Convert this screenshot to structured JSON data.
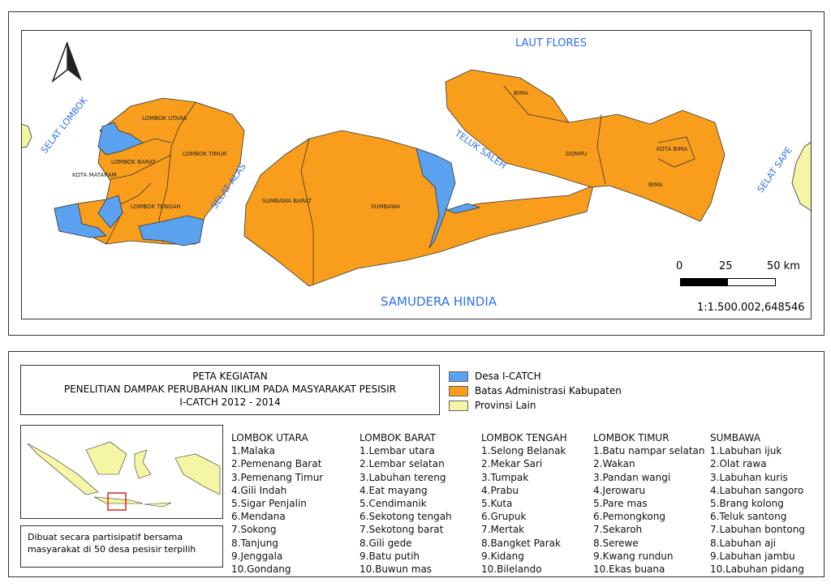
{
  "map": {
    "labels": {
      "laut_flores": "LAUT FLORES",
      "selat_lombok": "SELAT LOMBOK",
      "selat_alas": "SELAT ALAS",
      "teluk_saleh": "TELUK SALEH",
      "selat_sape": "SELAT SAPE",
      "samudera_hindia": "SAMUDERA HINDIA"
    },
    "regions": {
      "lombok_utara": "LOMBOK UTARA",
      "lombok_barat": "LOMBOK BARAT",
      "kota_mataram": "KOTA MATARAM",
      "lombok_tengah": "LOMBOK TENGAH",
      "lombok_timur": "LOMBOK TIMUR",
      "sumbawa_barat": "SUMBAWA BARAT",
      "sumbawa": "SUMBAWA",
      "dompu": "DOMPU",
      "bima_north": "BIMA",
      "bima": "BIMA",
      "kota_bima": "KOTA BIMA"
    },
    "scale": {
      "t0": "0",
      "t1": "25",
      "t2": "50 km",
      "ratio": "1:1.500.002,648546"
    },
    "north_arrow": "north-arrow-icon",
    "colors": {
      "desa": "#5aa2f0",
      "kabupaten": "#f99e1c",
      "provinsi_lain": "#f5f5a6",
      "label": "#2f6fef"
    }
  },
  "legend": {
    "title": [
      "PETA KEGIATAN",
      "PENELITIAN DAMPAK PERUBAHAN IIKLIM PADA MASYARAKAT PESISIR",
      "I-CATCH 2012 - 2014"
    ],
    "items": [
      {
        "label": "Desa I-CATCH",
        "color": "#5aa2f0"
      },
      {
        "label": "Batas Administrasi Kabupaten",
        "color": "#f99e1c"
      },
      {
        "label": "Provinsi Lain",
        "color": "#f5f5a6"
      }
    ],
    "note": [
      "Dibuat secara partisipatif bersama",
      "masyarakat di 50 desa pesisir terpilih"
    ]
  },
  "lists": [
    {
      "header": "LOMBOK UTARA",
      "items": [
        "1.Malaka",
        "2.Pemenang Barat",
        "3.Pemenang Timur",
        "4.Gili Indah",
        "5.Sigar Penjalin",
        "6.Mendana",
        "7.Sokong",
        "8.Tanjung",
        "9.Jenggala",
        "10.Gondang"
      ]
    },
    {
      "header": "LOMBOK BARAT",
      "items": [
        "1.Lembar utara",
        "2.Lembar selatan",
        "3.Labuhan tereng",
        "4.Eat mayang",
        "5.Cendimanik",
        "6.Sekotong tengah",
        "7.Sekotong barat",
        "8.Gili gede",
        "9.Batu putih",
        "10.Buwun mas"
      ]
    },
    {
      "header": "LOMBOK TENGAH",
      "items": [
        "1.Selong Belanak",
        "2.Mekar Sari",
        "3.Tumpak",
        "4.Prabu",
        "5.Kuta",
        "6.Grupuk",
        "7.Mertak",
        "8.Bangket Parak",
        "9.Kidang",
        "10.Bilelando"
      ]
    },
    {
      "header": "LOMBOK TIMUR",
      "items": [
        "1.Batu nampar selatan",
        "2.Wakan",
        "3.Pandan wangi",
        "4.Jerowaru",
        "5.Pare mas",
        "6.Pemongkong",
        "7.Sekaroh",
        "8.Serewe",
        "9.Kwang rundun",
        "10.Ekas buana"
      ]
    },
    {
      "header": "SUMBAWA",
      "items": [
        "1.Labuhan ijuk",
        "2.Olat rawa",
        "3.Labuhan kuris",
        "4.Labuhan sangoro",
        "5.Brang kolong",
        "6.Teluk santong",
        "7.Labuhan bontong",
        "8.Labuhan aji",
        "9.Labuhan jambu",
        "10.Labuhan pidang"
      ]
    }
  ]
}
